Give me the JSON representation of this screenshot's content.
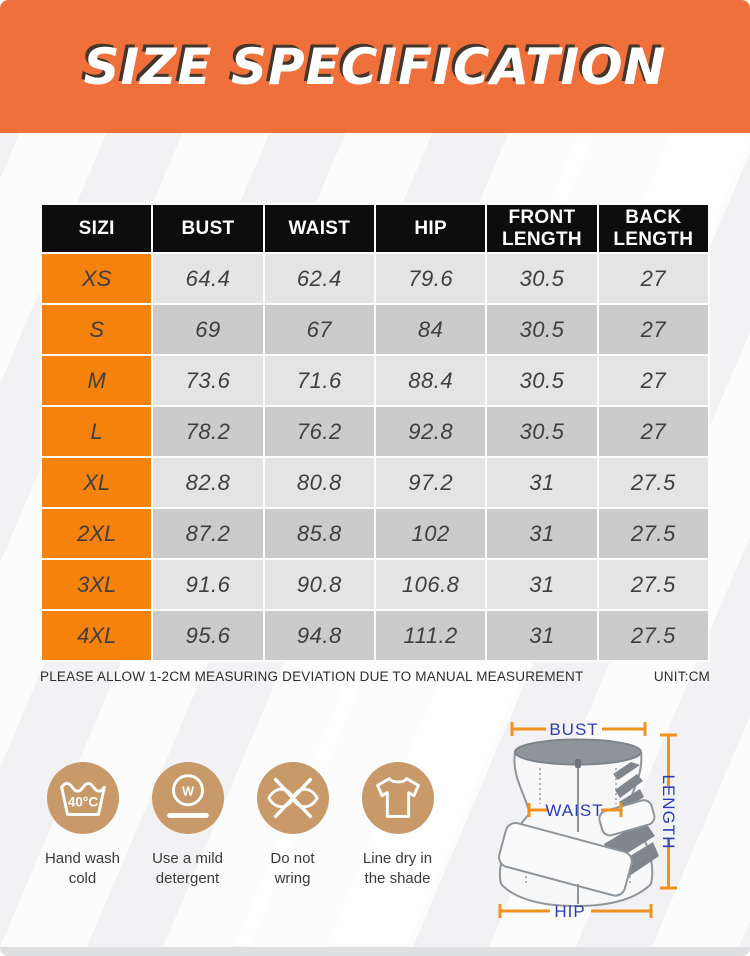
{
  "banner": {
    "title": "SIZE SPECIFICATION",
    "bg_color": "#F0703C",
    "text_color": "#FFFFFF",
    "shadow_color": "#30302A"
  },
  "table": {
    "headers": [
      "SIZI",
      "BUST",
      "WAIST",
      "HIP",
      "FRONT LENGTH",
      "BACK LENGTH"
    ],
    "rows": [
      {
        "size": "XS",
        "values": [
          "64.4",
          "62.4",
          "79.6",
          "30.5",
          "27"
        ]
      },
      {
        "size": "S",
        "values": [
          "69",
          "67",
          "84",
          "30.5",
          "27"
        ]
      },
      {
        "size": "M",
        "values": [
          "73.6",
          "71.6",
          "88.4",
          "30.5",
          "27"
        ]
      },
      {
        "size": "L",
        "values": [
          "78.2",
          "76.2",
          "92.8",
          "30.5",
          "27"
        ]
      },
      {
        "size": "XL",
        "values": [
          "82.8",
          "80.8",
          "97.2",
          "31",
          "27.5"
        ]
      },
      {
        "size": "2XL",
        "values": [
          "87.2",
          "85.8",
          "102",
          "31",
          "27.5"
        ]
      },
      {
        "size": "3XL",
        "values": [
          "91.6",
          "90.8",
          "106.8",
          "31",
          "27.5"
        ]
      },
      {
        "size": "4XL",
        "values": [
          "95.6",
          "94.8",
          "111.2",
          "31",
          "27.5"
        ]
      }
    ],
    "note": "PLEASE ALLOW 1-2CM MEASURING DEVIATION DUE TO MANUAL MEASUREMENT",
    "unit": "UNIT:CM",
    "colors": {
      "header_bg": "#0D0D0D",
      "header_text": "#FFFFFF",
      "size_col_bg": "#F6820E",
      "row_light": "#E4E4E4",
      "row_dark": "#CBCBCB",
      "cell_text": "#3F3F3F"
    }
  },
  "care": {
    "circle_color": "#C89A6A",
    "items": [
      {
        "icon": "hand-wash-icon",
        "label": "Hand wash\ncold",
        "temp": "40°C"
      },
      {
        "icon": "mild-detergent-icon",
        "label": "Use a mild\ndetergent",
        "letter": "W"
      },
      {
        "icon": "do-not-wring-icon",
        "label": "Do not\nwring"
      },
      {
        "icon": "line-dry-shade-icon",
        "label": "Line dry in\nthe shade"
      }
    ]
  },
  "diagram": {
    "labels": {
      "bust": "BUST",
      "waist": "WAIST",
      "hip": "HIP",
      "length": "LENGTH"
    },
    "label_color": "#2B3DB5",
    "line_color": "#F0921E"
  }
}
